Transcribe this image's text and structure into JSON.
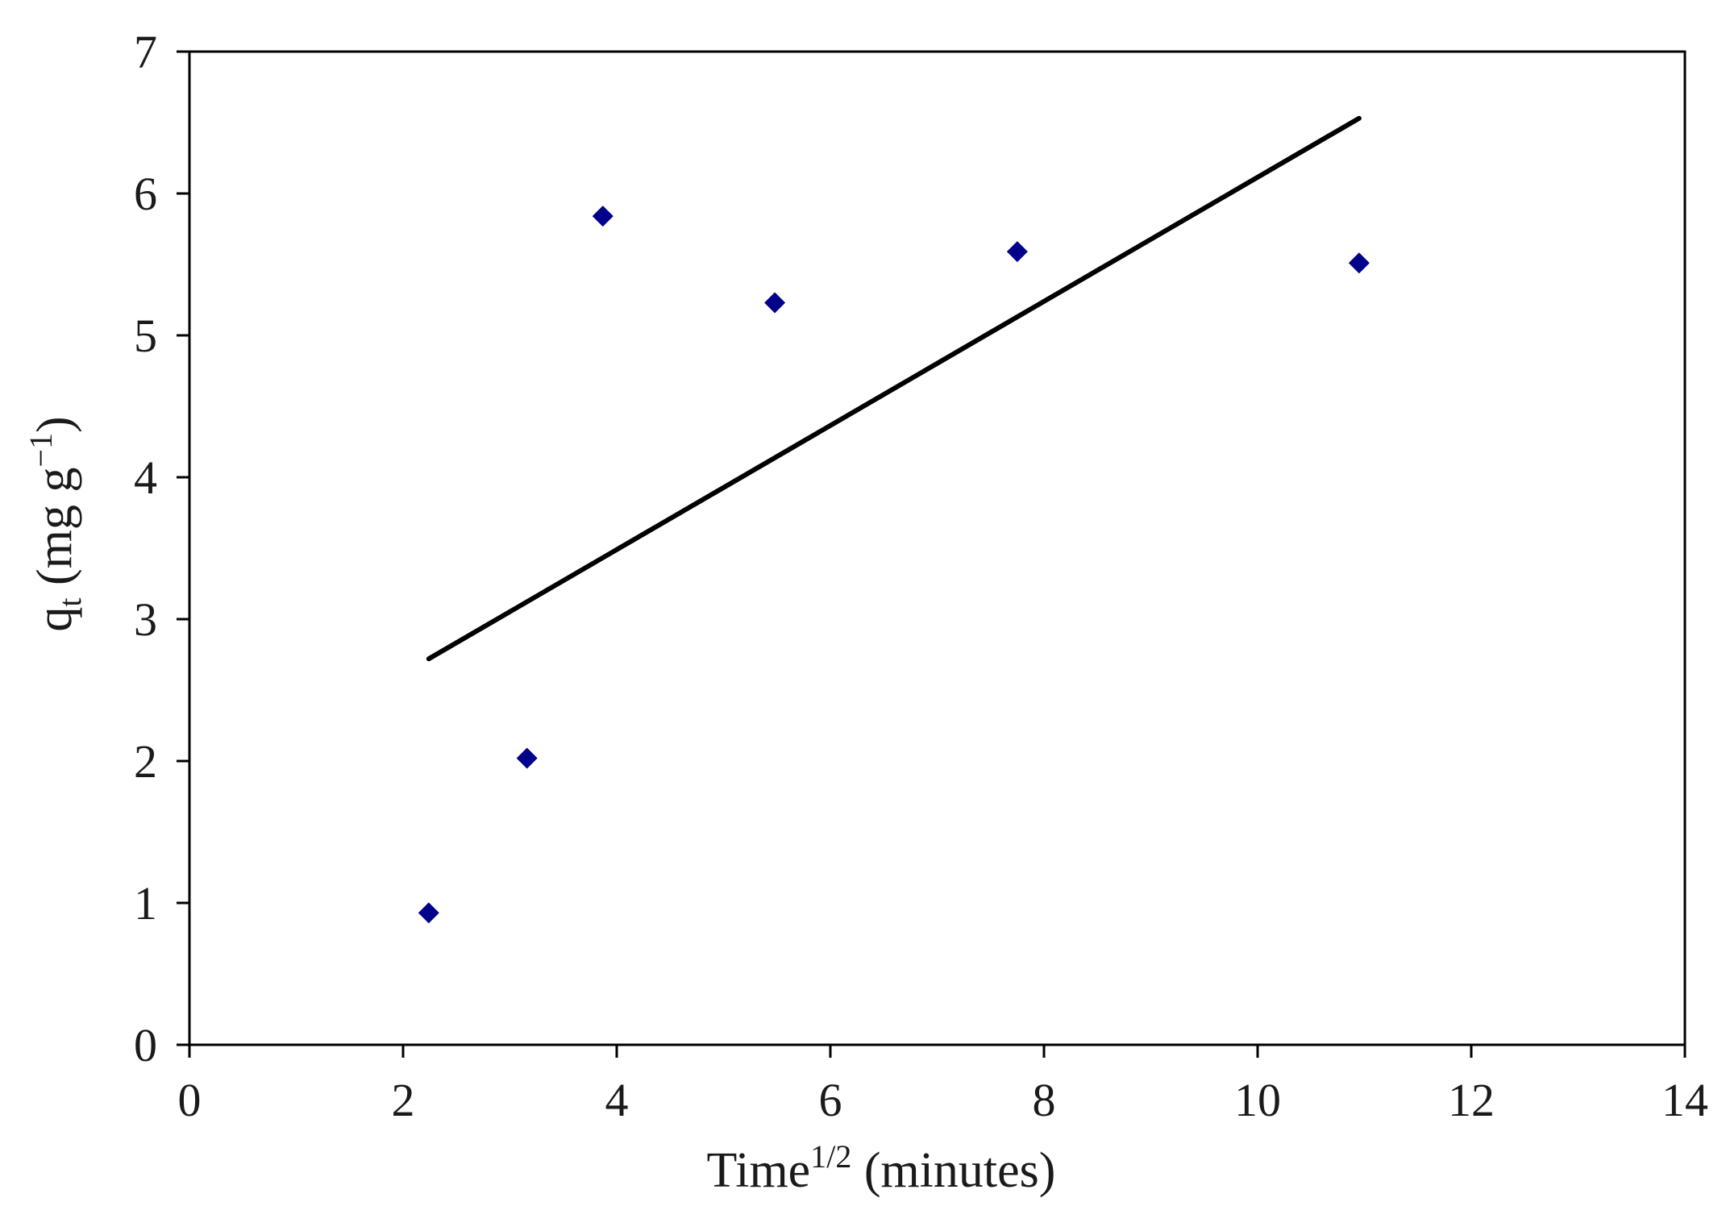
{
  "chart_data": {
    "type": "scatter",
    "title": "",
    "xlabel": {
      "base": "Time",
      "superscript": "1/2",
      "rest": " (minutes)"
    },
    "ylabel": {
      "base": "q",
      "subscript": "t",
      "paren_open": " (mg g",
      "superscript": "−1",
      "paren_close": ")"
    },
    "xlim": [
      0,
      14
    ],
    "ylim": [
      0,
      7
    ],
    "xticks": [
      0,
      2,
      4,
      6,
      8,
      10,
      12,
      14
    ],
    "yticks": [
      0,
      1,
      2,
      3,
      4,
      5,
      6,
      7
    ],
    "grid": false,
    "legend": "none",
    "colors": {
      "points": "#00008b",
      "trendline": "#000000",
      "axes": "#000000"
    },
    "series": [
      {
        "marker": "diamond",
        "x": [
          2.24,
          3.16,
          3.87,
          5.48,
          7.75,
          10.95
        ],
        "y": [
          0.93,
          2.02,
          5.84,
          5.23,
          5.59,
          5.51
        ]
      }
    ],
    "trendline": {
      "x": [
        2.24,
        10.95
      ],
      "y": [
        2.72,
        6.53
      ]
    }
  }
}
